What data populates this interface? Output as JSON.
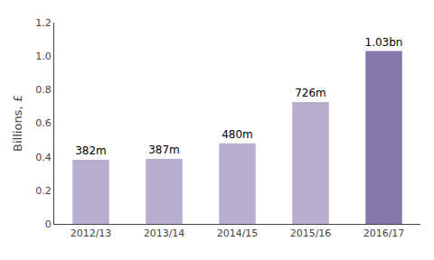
{
  "chart_data": {
    "type": "bar",
    "categories": [
      "2012/13",
      "2013/14",
      "2014/15",
      "2015/16",
      "2016/17"
    ],
    "values": [
      0.382,
      0.387,
      0.48,
      0.726,
      1.03
    ],
    "value_labels": [
      "382m",
      "387m",
      "480m",
      "726m",
      "1.03bn"
    ],
    "data_labels": true,
    "colors": [
      "#b8aed0",
      "#b8aed0",
      "#b8aed0",
      "#b8aed0",
      "#8878aa"
    ],
    "ylabel": "Billions, £",
    "ylim": [
      0,
      1.2
    ],
    "yticks": [
      0,
      0.2,
      0.4,
      0.6,
      0.8,
      {
        "value": 1,
        "label": "1.0"
      },
      1.2
    ],
    "grid": false
  }
}
